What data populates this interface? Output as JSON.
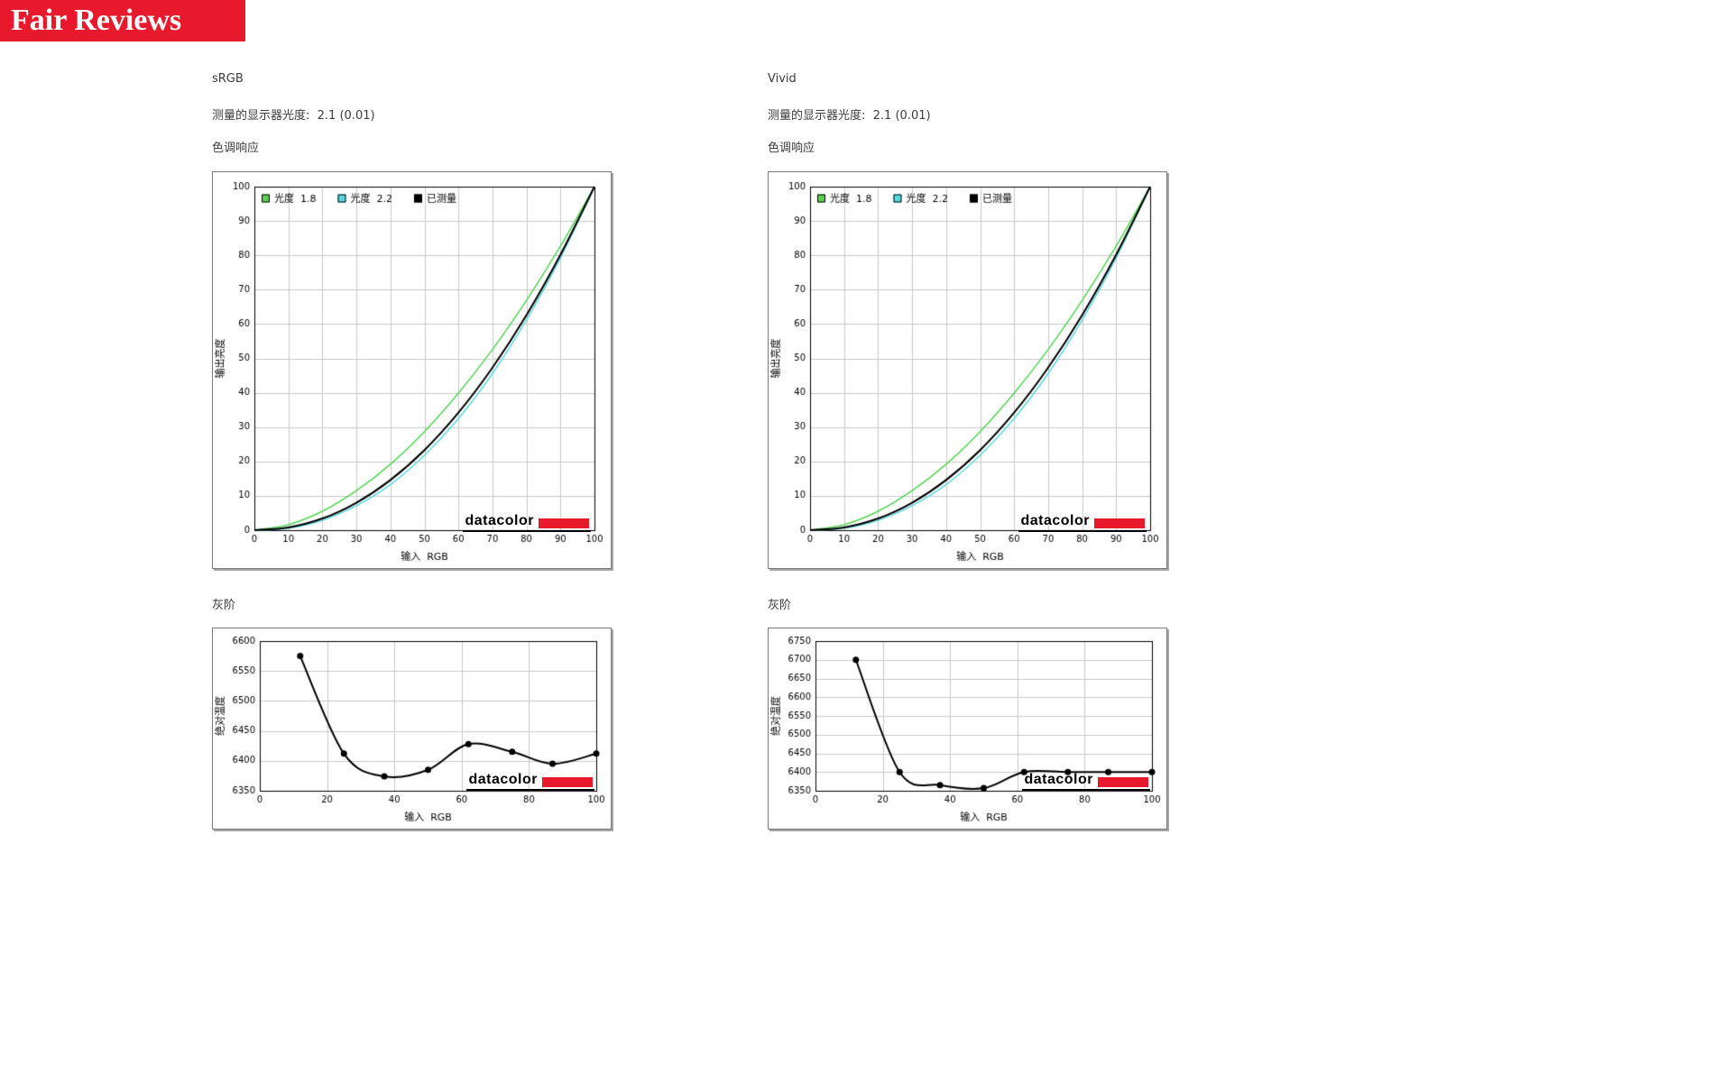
{
  "banner": {
    "title": "Fair Reviews",
    "background": "#e8192c"
  },
  "logo": {
    "text": "datacolor",
    "accent": "#e8192c"
  },
  "columns": [
    {
      "mode": "sRGB",
      "gamma_label": "测量的显示器光度:",
      "gamma_value": "2.1 (0.01)",
      "tone_heading": "色调响应",
      "gray_heading": "灰阶"
    },
    {
      "mode": "Vivid",
      "gamma_label": "测量的显示器光度:",
      "gamma_value": "2.1 (0.01)",
      "tone_heading": "色调响应",
      "gray_heading": "灰阶"
    }
  ],
  "chart_data": [
    {
      "id": "tone-response-srgb",
      "type": "line",
      "kind": "tone",
      "xlabel": "输入  RGB",
      "ylabel": "输出亮度",
      "xlim": [
        0,
        100
      ],
      "ylim": [
        0,
        100
      ],
      "xticks": [
        0,
        10,
        20,
        30,
        40,
        50,
        60,
        70,
        80,
        90,
        100
      ],
      "yticks": [
        0,
        10,
        20,
        30,
        40,
        50,
        60,
        70,
        80,
        90,
        100
      ],
      "grid": true,
      "legend_position": "top-left",
      "legend": [
        {
          "label": "光度  1.8",
          "color": "#55d455"
        },
        {
          "label": "光度  2.2",
          "color": "#5cd9e0"
        },
        {
          "label": "已测量",
          "color": "#000000"
        }
      ],
      "x": [
        0,
        10,
        20,
        30,
        40,
        50,
        60,
        70,
        80,
        90,
        100
      ],
      "series": [
        {
          "name": "光度 1.8",
          "color": "#55d455",
          "width": 1.5,
          "values": [
            0,
            1.6,
            5.5,
            11.5,
            19.2,
            28.7,
            39.9,
            52.6,
            66.9,
            82.7,
            100
          ]
        },
        {
          "name": "光度 2.2",
          "color": "#5cd9e0",
          "width": 1.5,
          "values": [
            0,
            0.6,
            2.9,
            7.1,
            13.3,
            21.8,
            32.5,
            45.6,
            61.2,
            79.3,
            100
          ]
        },
        {
          "name": "已测量",
          "color": "#000000",
          "width": 2,
          "values": [
            0,
            0.8,
            3.4,
            8.0,
            14.6,
            23.3,
            34.2,
            47.3,
            62.6,
            80.2,
            100
          ]
        }
      ]
    },
    {
      "id": "tone-response-vivid",
      "type": "line",
      "kind": "tone",
      "xlabel": "输入  RGB",
      "ylabel": "输出亮度",
      "xlim": [
        0,
        100
      ],
      "ylim": [
        0,
        100
      ],
      "xticks": [
        0,
        10,
        20,
        30,
        40,
        50,
        60,
        70,
        80,
        90,
        100
      ],
      "yticks": [
        0,
        10,
        20,
        30,
        40,
        50,
        60,
        70,
        80,
        90,
        100
      ],
      "grid": true,
      "legend_position": "top-left",
      "legend": [
        {
          "label": "光度  1.8",
          "color": "#55d455"
        },
        {
          "label": "光度  2.2",
          "color": "#5cd9e0"
        },
        {
          "label": "已测量",
          "color": "#000000"
        }
      ],
      "x": [
        0,
        10,
        20,
        30,
        40,
        50,
        60,
        70,
        80,
        90,
        100
      ],
      "series": [
        {
          "name": "光度 1.8",
          "color": "#55d455",
          "width": 1.5,
          "values": [
            0,
            1.6,
            5.5,
            11.5,
            19.2,
            28.7,
            39.9,
            52.6,
            66.9,
            82.7,
            100
          ]
        },
        {
          "name": "光度 2.2",
          "color": "#5cd9e0",
          "width": 1.5,
          "values": [
            0,
            0.6,
            2.9,
            7.1,
            13.3,
            21.8,
            32.5,
            45.6,
            61.2,
            79.3,
            100
          ]
        },
        {
          "name": "已测量",
          "color": "#000000",
          "width": 2,
          "values": [
            0,
            0.8,
            3.4,
            8.0,
            14.6,
            23.3,
            34.2,
            47.3,
            62.6,
            80.2,
            100
          ]
        }
      ]
    },
    {
      "id": "grayscale-srgb",
      "type": "line",
      "kind": "grayscale",
      "xlabel": "输入  RGB",
      "ylabel": "绝对温度",
      "xlim": [
        0,
        100
      ],
      "ylim": [
        6350,
        6600
      ],
      "xticks": [
        0,
        20,
        40,
        60,
        80,
        100
      ],
      "yticks": [
        6350,
        6400,
        6450,
        6500,
        6550,
        6600
      ],
      "grid": true,
      "x": [
        12,
        25,
        37,
        50,
        62,
        75,
        87,
        100
      ],
      "series": [
        {
          "name": "已测量",
          "color": "#000000",
          "width": 2,
          "markers": true,
          "values": [
            6575,
            6412,
            6374,
            6385,
            6428,
            6415,
            6395,
            6412
          ]
        }
      ]
    },
    {
      "id": "grayscale-vivid",
      "type": "line",
      "kind": "grayscale",
      "xlabel": "输入  RGB",
      "ylabel": "绝对温度",
      "xlim": [
        0,
        100
      ],
      "ylim": [
        6350,
        6750
      ],
      "xticks": [
        0,
        20,
        40,
        60,
        80,
        100
      ],
      "yticks": [
        6350,
        6400,
        6450,
        6500,
        6550,
        6600,
        6650,
        6700,
        6750
      ],
      "grid": true,
      "x": [
        12,
        25,
        37,
        50,
        62,
        75,
        87,
        100
      ],
      "series": [
        {
          "name": "已测量",
          "color": "#000000",
          "width": 2,
          "markers": true,
          "values": [
            6700,
            6400,
            6365,
            6357,
            6400,
            6400,
            6400,
            6400
          ]
        }
      ]
    }
  ]
}
